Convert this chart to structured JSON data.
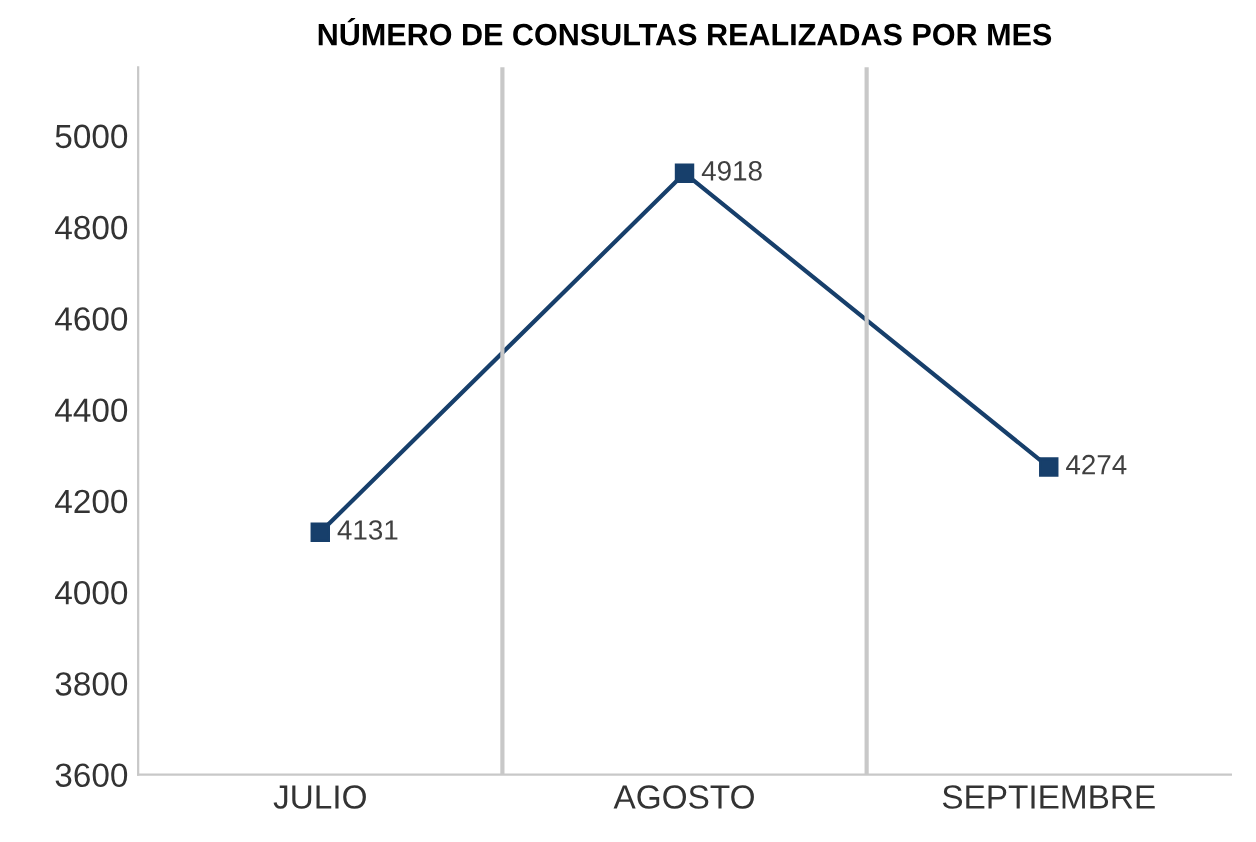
{
  "chart_data": {
    "type": "line",
    "title": "NÚMERO DE CONSULTAS REALIZADAS POR MES",
    "categories": [
      "JULIO",
      "AGOSTO",
      "SEPTIEMBRE"
    ],
    "series": [
      {
        "color": "#173f6b",
        "values": [
          4131,
          4918,
          4274
        ]
      }
    ],
    "ylim": [
      3600,
      5150
    ],
    "yticks": [
      3600,
      3800,
      4000,
      4200,
      4400,
      4600,
      4800,
      5000
    ],
    "grid": "x",
    "marker": "square",
    "data_labels": true,
    "legend": false
  }
}
